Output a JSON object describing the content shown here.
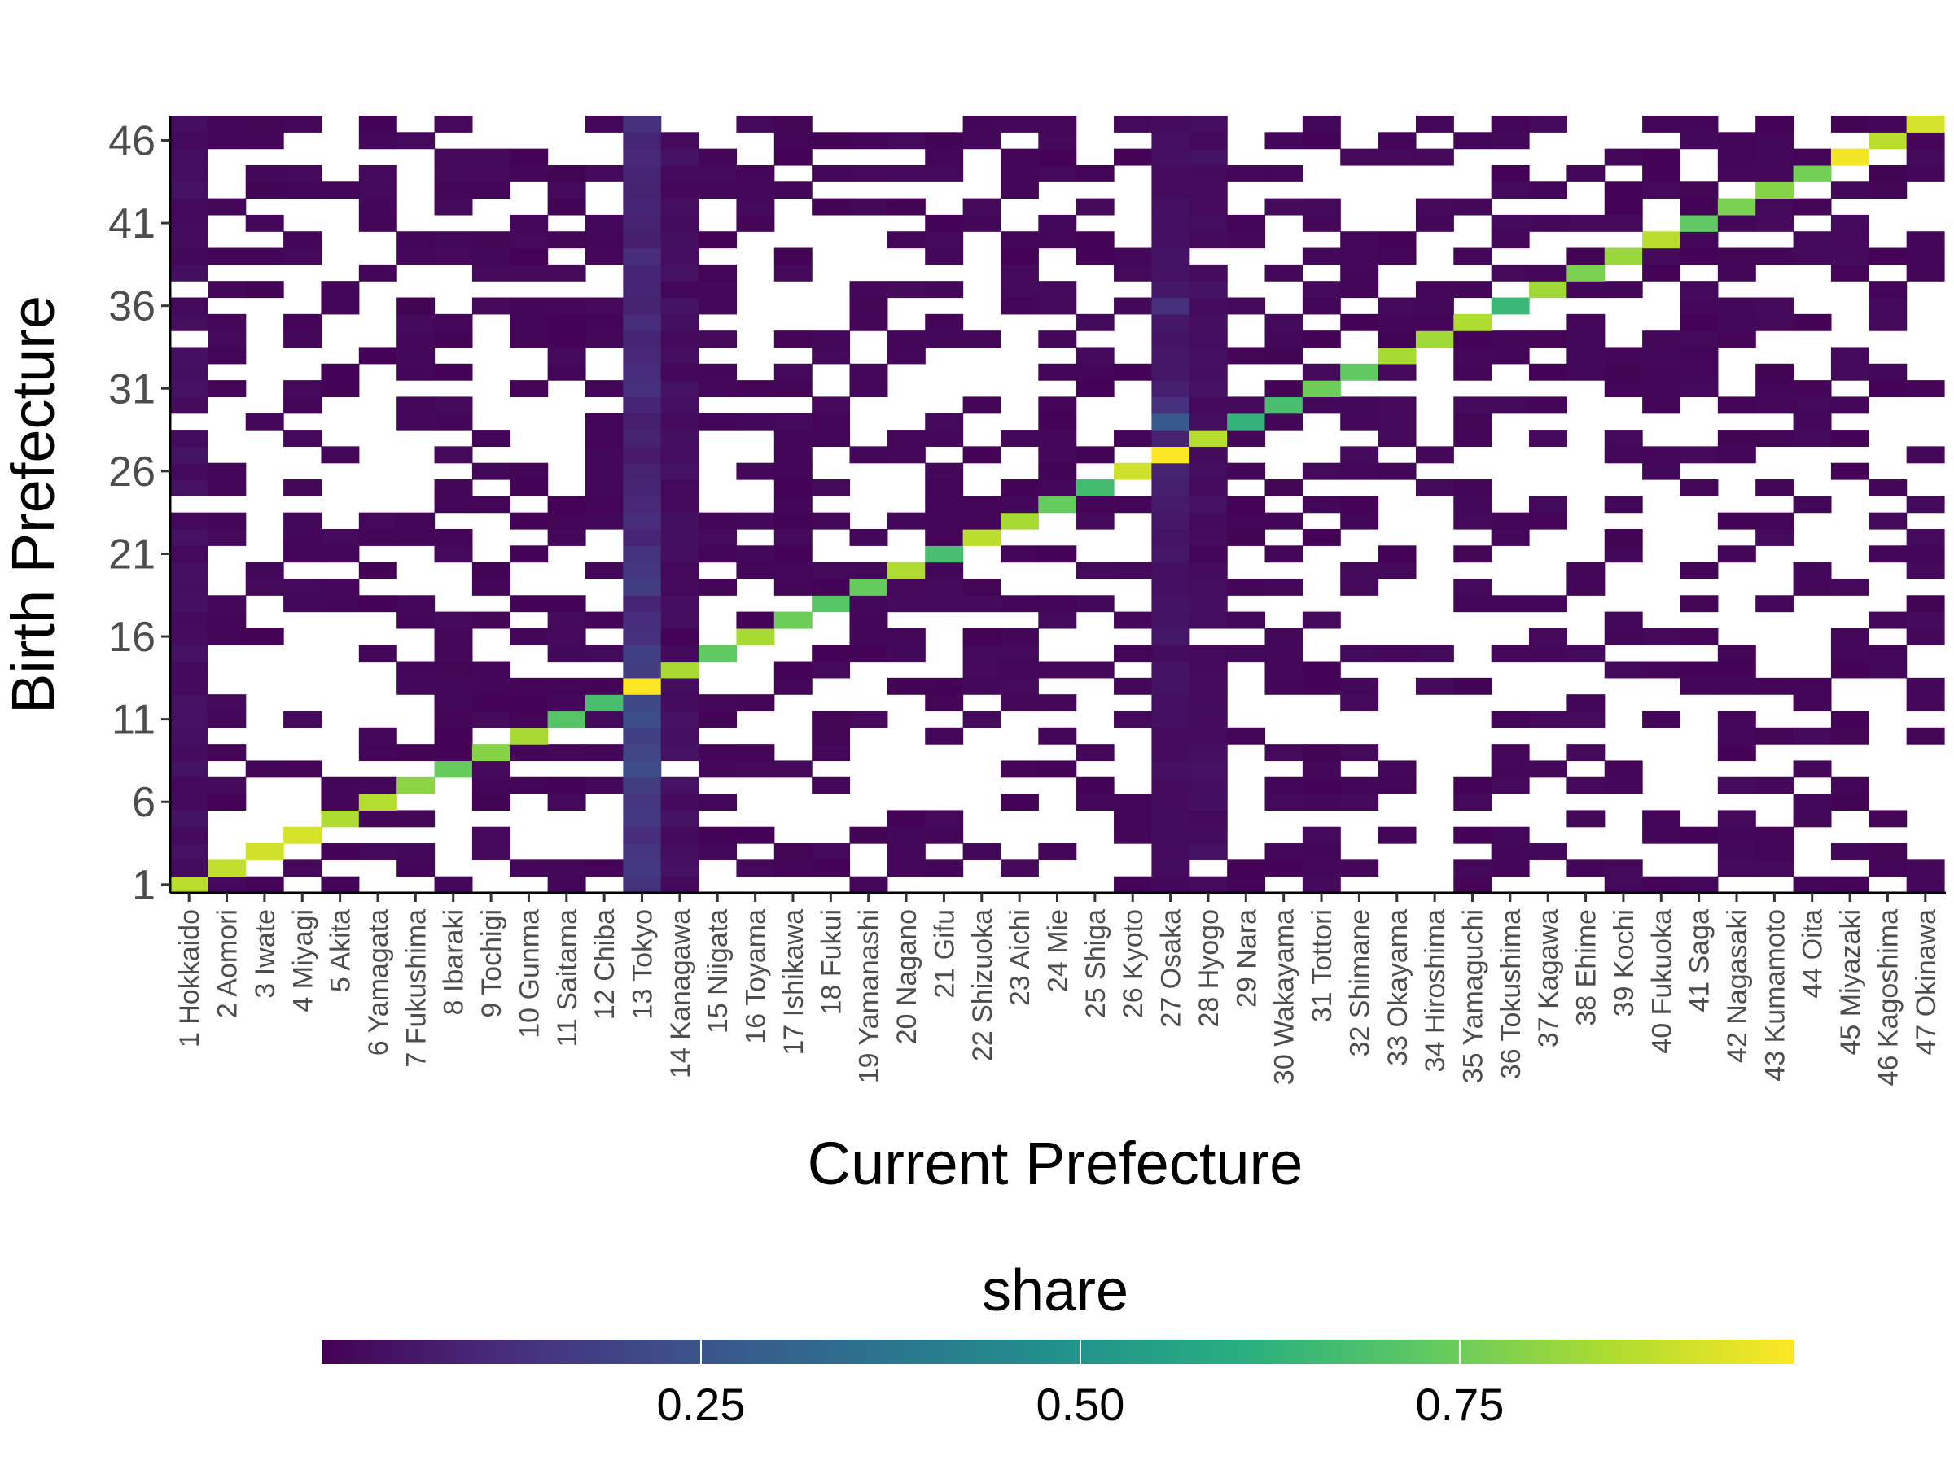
{
  "chart_data": {
    "type": "heatmap",
    "title": "",
    "xlabel": "Current Prefecture",
    "ylabel": "Birth Prefecture",
    "x_categories": [
      "1 Hokkaido",
      "2 Aomori",
      "3 Iwate",
      "4 Miyagi",
      "5 Akita",
      "6 Yamagata",
      "7 Fukushima",
      "8 Ibaraki",
      "9 Tochigi",
      "10 Gunma",
      "11 Saitama",
      "12 Chiba",
      "13 Tokyo",
      "14 Kanagawa",
      "15 Niigata",
      "16 Toyama",
      "17 Ishikawa",
      "18 Fukui",
      "19 Yamanashi",
      "20 Nagano",
      "21 Gifu",
      "22 Shizuoka",
      "23 Aichi",
      "24 Mie",
      "25 Shiga",
      "26 Kyoto",
      "27 Osaka",
      "28 Hyogo",
      "29 Nara",
      "30 Wakayama",
      "31 Tottori",
      "32 Shimane",
      "33 Okayama",
      "34 Hiroshima",
      "35 Yamaguchi",
      "36 Tokushima",
      "37 Kagawa",
      "38 Ehime",
      "39 Kochi",
      "40 Fukuoka",
      "41 Saga",
      "42 Nagasaki",
      "43 Kumamoto",
      "44 Oita",
      "45 Miyazaki",
      "46 Kagoshima",
      "47 Okinawa"
    ],
    "y_range": [
      1,
      47
    ],
    "y_ticks": [
      "1",
      "6",
      "11",
      "16",
      "21",
      "26",
      "31",
      "36",
      "41",
      "46"
    ],
    "diagonal_share": [
      0.87,
      0.88,
      0.9,
      0.91,
      0.85,
      0.86,
      0.8,
      0.74,
      0.79,
      0.84,
      0.71,
      0.68,
      0.97,
      0.84,
      0.73,
      0.84,
      0.75,
      0.71,
      0.74,
      0.85,
      0.68,
      0.87,
      0.84,
      0.74,
      0.67,
      0.9,
      0.97,
      0.86,
      0.63,
      0.68,
      0.75,
      0.73,
      0.84,
      0.83,
      0.85,
      0.65,
      0.83,
      0.77,
      0.82,
      0.87,
      0.73,
      0.77,
      0.79,
      0.76,
      0.95,
      0.87,
      0.91
    ],
    "tokyo_column_share": [
      0.14,
      0.16,
      0.15,
      0.12,
      0.16,
      0.15,
      0.17,
      0.22,
      0.2,
      0.18,
      0.23,
      0.21,
      0.97,
      0.17,
      0.18,
      0.13,
      0.12,
      0.1,
      0.17,
      0.15,
      0.14,
      0.1,
      0.12,
      0.11,
      0.1,
      0.09,
      0.07,
      0.09,
      0.08,
      0.1,
      0.13,
      0.12,
      0.11,
      0.1,
      0.12,
      0.09,
      0.1,
      0.1,
      0.12,
      0.08,
      0.09,
      0.1,
      0.09,
      0.1,
      0.11,
      0.1,
      0.13
    ],
    "osaka_column_share": [
      0.02,
      0.03,
      0.03,
      0.03,
      0.03,
      0.03,
      0.03,
      0.04,
      0.03,
      0.03,
      0.04,
      0.04,
      0.05,
      0.05,
      0.03,
      0.06,
      0.05,
      0.05,
      0.04,
      0.04,
      0.06,
      0.05,
      0.06,
      0.07,
      0.08,
      0.09,
      0.97,
      0.09,
      0.27,
      0.13,
      0.08,
      0.06,
      0.06,
      0.05,
      0.06,
      0.13,
      0.06,
      0.05,
      0.05,
      0.04,
      0.04,
      0.04,
      0.03,
      0.03,
      0.04,
      0.04,
      0.03
    ],
    "off_diagonal_fill_ratio": 0.42,
    "legend": {
      "title": "share",
      "position": "bottom",
      "range": [
        0.0,
        0.97
      ],
      "ticks": [
        0.25,
        0.5,
        0.75
      ],
      "tick_labels": [
        "0.25",
        "0.50",
        "0.75"
      ]
    },
    "colorscale": [
      "#440154",
      "#472d7b",
      "#3b528b",
      "#2c728e",
      "#21918c",
      "#28ae80",
      "#5ec962",
      "#addc30",
      "#fde725"
    ],
    "grid": false
  }
}
